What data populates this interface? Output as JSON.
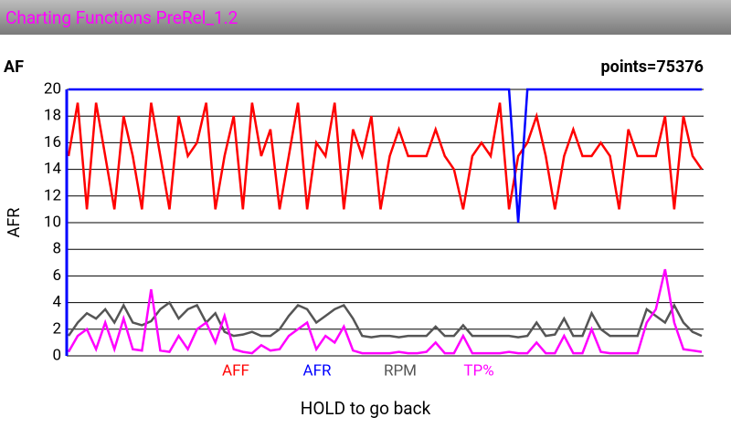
{
  "app_title": "Charting Functions PreRel_1.2",
  "header": {
    "left": "AF",
    "right": "points=75376"
  },
  "footer": "HOLD to go back",
  "chart_data": {
    "type": "line",
    "y_label": "AFR",
    "ylim": [
      0,
      20
    ],
    "yticks": [
      0,
      2,
      4,
      6,
      8,
      10,
      12,
      14,
      16,
      18,
      20
    ],
    "grid": true,
    "series": [
      {
        "name": "AFF",
        "color": "#ff0000",
        "values": [
          15,
          19,
          11,
          19,
          15,
          11,
          18,
          15,
          11,
          19,
          15,
          11,
          18,
          15,
          16,
          19,
          11,
          15,
          18,
          11,
          19,
          15,
          17,
          11,
          15,
          19,
          11,
          16,
          15,
          19,
          11,
          17,
          15,
          18,
          11,
          15,
          17,
          15,
          15,
          15,
          17,
          15,
          14,
          11,
          15,
          16,
          15,
          19,
          11,
          15,
          16,
          18,
          15,
          11,
          15,
          17,
          15,
          15,
          16,
          15,
          11,
          17,
          15,
          15,
          15,
          18,
          11,
          18,
          15,
          14
        ]
      },
      {
        "name": "AFR",
        "color": "#0000ff",
        "values": [
          20,
          20,
          20,
          20,
          20,
          20,
          20,
          20,
          20,
          20,
          20,
          20,
          20,
          20,
          20,
          20,
          20,
          20,
          20,
          20,
          20,
          20,
          20,
          20,
          20,
          20,
          20,
          20,
          20,
          20,
          20,
          20,
          20,
          20,
          20,
          20,
          20,
          20,
          20,
          20,
          20,
          20,
          20,
          20,
          20,
          20,
          20,
          20,
          20,
          10,
          20,
          20,
          20,
          20,
          20,
          20,
          20,
          20,
          20,
          20,
          20,
          20,
          20,
          20,
          20,
          20,
          20,
          20,
          20,
          20
        ]
      },
      {
        "name": "RPM",
        "color": "#555555",
        "values": [
          1.5,
          2.5,
          3.2,
          2.8,
          3.5,
          2.5,
          3.8,
          2.5,
          2.3,
          2.6,
          3.5,
          4,
          2.8,
          3.5,
          3.8,
          2.5,
          3.2,
          1.8,
          1.5,
          1.6,
          1.8,
          1.5,
          1.5,
          2,
          3,
          3.8,
          3.5,
          2.5,
          3,
          3.5,
          3.8,
          2.8,
          1.5,
          1.4,
          1.5,
          1.5,
          1.4,
          1.5,
          1.5,
          1.5,
          2.2,
          1.5,
          1.5,
          2.3,
          1.5,
          1.5,
          1.5,
          1.5,
          1.5,
          1.4,
          1.5,
          2.5,
          1.5,
          1.6,
          2.8,
          1.5,
          1.5,
          3.2,
          2,
          1.5,
          1.5,
          1.5,
          1.5,
          3.5,
          3,
          2.5,
          3.8,
          2.5,
          1.8,
          1.5
        ]
      },
      {
        "name": "TP%",
        "color": "#ff00ff",
        "values": [
          0.3,
          1.5,
          2,
          0.5,
          2.5,
          0.5,
          2.8,
          0.5,
          0.4,
          5,
          0.4,
          0.3,
          1.5,
          0.5,
          2,
          2.5,
          1,
          3,
          0.5,
          0.3,
          0.2,
          0.8,
          0.4,
          0.5,
          1.5,
          2,
          2.5,
          0.5,
          1.5,
          1,
          2.2,
          0.4,
          0.2,
          0.2,
          0.2,
          0.2,
          0.3,
          0.2,
          0.2,
          0.3,
          1,
          0.2,
          0.2,
          1.5,
          0.2,
          0.2,
          0.2,
          0.2,
          0.3,
          0.2,
          0.2,
          1,
          0.2,
          0.2,
          1.5,
          0.2,
          0.2,
          2,
          0.3,
          0.2,
          0.2,
          0.2,
          0.2,
          2.5,
          3.5,
          6.5,
          2.5,
          0.5,
          0.4,
          0.3
        ]
      }
    ]
  }
}
